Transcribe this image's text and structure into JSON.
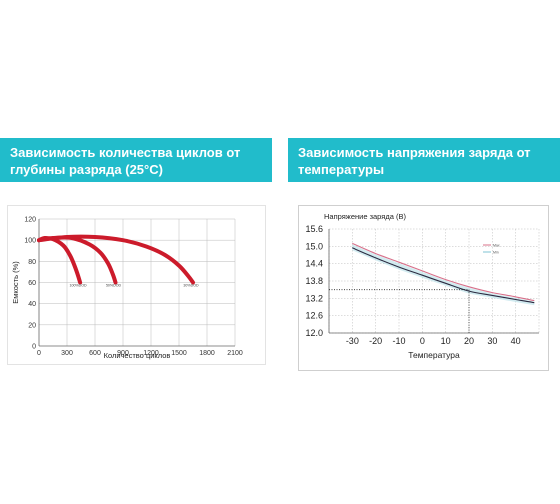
{
  "banners": {
    "left_title": "Зависимость количества циклов от глубины разряда (25°C)",
    "right_title": "Зависимость напряжения заряда от температуры"
  },
  "colors": {
    "banner": "#21bccb",
    "cycle_curve": "#cc1b2b",
    "voltage_upper": "#d8708a",
    "voltage_lower": "#2a2a40",
    "voltage_band": "#bfe2ea",
    "grid": "#bbbbbb"
  },
  "chart_data": [
    {
      "type": "line",
      "title": "",
      "xlabel": "Количество циклов",
      "ylabel": "Емкость (%)",
      "xlim": [
        0,
        2100
      ],
      "ylim": [
        0,
        120
      ],
      "x_ticks": [
        "0",
        "300",
        "600",
        "900",
        "1200",
        "1500",
        "1800",
        "2100"
      ],
      "y_ticks": [
        "0",
        "20",
        "40",
        "60",
        "80",
        "100",
        "120"
      ],
      "grid": true,
      "series": [
        {
          "name": "100%DOD",
          "x": [
            0,
            60,
            150,
            260,
            330,
            380,
            420,
            440
          ],
          "y": [
            100,
            102,
            101,
            95,
            86,
            76,
            66,
            60
          ]
        },
        {
          "name": "50%DOD",
          "x": [
            0,
            150,
            350,
            540,
            660,
            740,
            790,
            820
          ],
          "y": [
            100,
            102,
            102,
            96,
            88,
            78,
            68,
            60
          ]
        },
        {
          "name": "30%DOD",
          "x": [
            0,
            300,
            600,
            900,
            1150,
            1350,
            1500,
            1600,
            1650
          ],
          "y": [
            100,
            103,
            103,
            100,
            94,
            86,
            76,
            66,
            60
          ]
        }
      ],
      "labels": [
        "100%DOD",
        "50%DOD",
        "30%DOD"
      ]
    },
    {
      "type": "line",
      "title": "Напряжение заряда (В)",
      "xlabel": "Температура",
      "ylabel": "",
      "xlim": [
        -40,
        50
      ],
      "ylim": [
        12.0,
        15.6
      ],
      "x_ticks": [
        "-30",
        "-20",
        "-10",
        "0",
        "10",
        "20",
        "30",
        "40"
      ],
      "y_ticks": [
        "15.6",
        "15.0",
        "14.4",
        "13.8",
        "13.2",
        "12.6",
        "12.0"
      ],
      "grid": true,
      "series": [
        {
          "name": "Max",
          "x": [
            -30,
            -20,
            -10,
            0,
            10,
            20,
            30,
            40,
            48
          ],
          "y": [
            15.1,
            14.75,
            14.45,
            14.15,
            13.85,
            13.6,
            13.4,
            13.25,
            13.12
          ]
        },
        {
          "name": "Min",
          "x": [
            -30,
            -20,
            -10,
            0,
            10,
            20,
            30,
            40,
            48
          ],
          "y": [
            14.95,
            14.6,
            14.28,
            14.0,
            13.72,
            13.45,
            13.3,
            13.16,
            13.05
          ]
        }
      ],
      "reference": {
        "x": 20,
        "y": 13.5
      }
    }
  ]
}
